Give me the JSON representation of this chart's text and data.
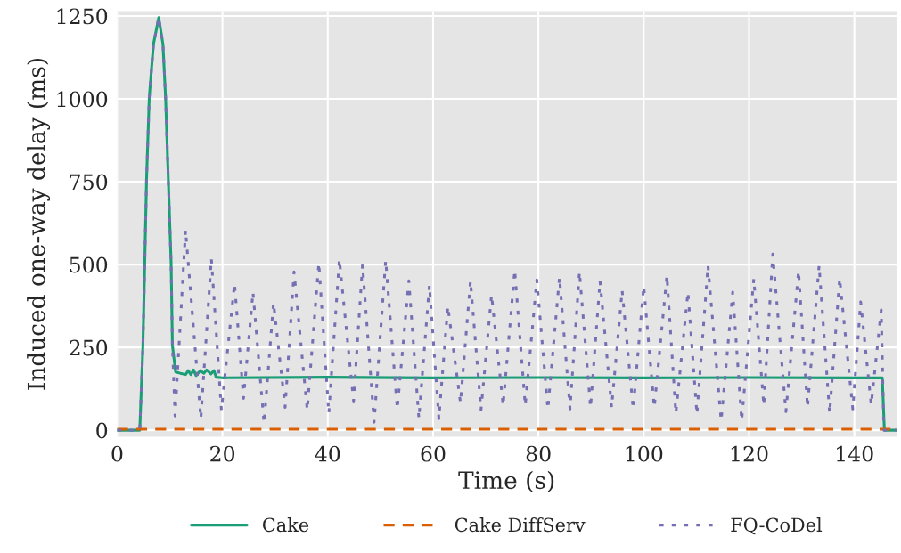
{
  "chart_data": {
    "type": "line",
    "xlabel": "Time (s)",
    "ylabel": "Induced one-way delay (ms)",
    "xlim": [
      0,
      148
    ],
    "ylim": [
      -20,
      1265
    ],
    "xticks": [
      0,
      20,
      40,
      60,
      80,
      100,
      120,
      140
    ],
    "yticks": [
      0,
      250,
      500,
      750,
      1000,
      1250
    ],
    "grid": true,
    "legend": "bottom",
    "series": [
      {
        "name": "Cake",
        "color": "#1b9e77",
        "line_style": "solid",
        "x": [
          0,
          4.3,
          4.9,
          5.6,
          6.1,
          6.9,
          7.9,
          8.7,
          9.2,
          9.7,
          10.25,
          10.5,
          11.1,
          12,
          13,
          13.5,
          14,
          14.5,
          15,
          15.8,
          16.5,
          17,
          17.8,
          18.4,
          18.8,
          20,
          40,
          60,
          80,
          100,
          120,
          140,
          145.3,
          145.7,
          148
        ],
        "values": [
          0,
          0,
          256,
          764,
          1004,
          1165,
          1245,
          1165,
          1004,
          764,
          506,
          256,
          176,
          172,
          168,
          180,
          168,
          182,
          165,
          180,
          172,
          182,
          170,
          180,
          160,
          158,
          160,
          158,
          159,
          158,
          159,
          158,
          158,
          0,
          0
        ]
      },
      {
        "name": "Cake DiffServ",
        "color": "#d95f02",
        "line_style": "dashed",
        "x": [
          0,
          148
        ],
        "values": [
          3,
          3
        ]
      },
      {
        "name": "FQ-CoDel",
        "color": "#7570b3",
        "line_style": "dotted",
        "x": [
          0,
          4.3,
          4.9,
          5.6,
          6.1,
          6.9,
          7.9,
          8.7,
          9.2,
          9.7,
          10.25,
          10.5,
          11.0,
          13.0,
          15.9,
          17.9,
          19.8,
          22.3,
          24.0,
          25.8,
          27.9,
          29.7,
          31.9,
          33.6,
          36.1,
          38.3,
          40.2,
          42.2,
          44.9,
          46.6,
          48.8,
          51.0,
          53.2,
          55.4,
          57.3,
          59.3,
          61.1,
          62.8,
          65.2,
          67.1,
          69.1,
          71.1,
          73.3,
          75.5,
          77.5,
          79.7,
          81.8,
          84.0,
          86.0,
          87.8,
          89.9,
          91.7,
          93.9,
          95.9,
          98.0,
          100.0,
          102.0,
          104.4,
          106.1,
          108.4,
          110.1,
          112.2,
          114.7,
          116.9,
          118.6,
          120.9,
          122.8,
          124.5,
          127.0,
          129.4,
          131.1,
          133.3,
          135.3,
          137.2,
          139.7,
          141.2,
          143.2,
          145.1,
          145.6,
          148
        ],
        "values": [
          0,
          0,
          256,
          764,
          1004,
          1165,
          1245,
          1165,
          1004,
          764,
          506,
          256,
          43,
          604,
          35,
          518,
          61,
          443,
          96,
          417,
          21,
          385,
          69,
          478,
          61,
          505,
          51,
          516,
          88,
          499,
          24,
          513,
          64,
          451,
          35,
          438,
          35,
          374,
          83,
          451,
          61,
          409,
          75,
          483,
          75,
          454,
          64,
          462,
          64,
          478,
          69,
          451,
          69,
          422,
          64,
          435,
          69,
          467,
          51,
          417,
          48,
          497,
          29,
          417,
          29,
          457,
          75,
          532,
          56,
          481,
          69,
          497,
          51,
          459,
          64,
          387,
          77,
          363,
          0,
          0
        ]
      }
    ]
  }
}
